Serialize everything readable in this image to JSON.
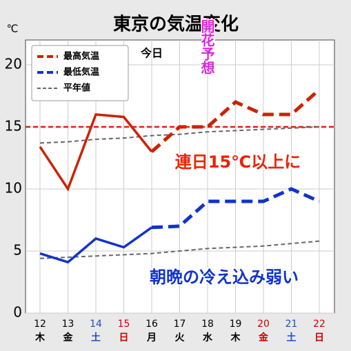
{
  "chart_data": {
    "type": "line",
    "title": "東京の気温変化",
    "y_unit": "℃",
    "categories": [
      "12",
      "13",
      "14",
      "15",
      "16",
      "17",
      "18",
      "19",
      "20",
      "21",
      "22"
    ],
    "weekdays": [
      "木",
      "金",
      "土",
      "日",
      "月",
      "火",
      "水",
      "木",
      "金",
      "土",
      "日"
    ],
    "weekday_colors": [
      "#000",
      "#000",
      "#1a4fc4",
      "#cc0000",
      "#000",
      "#000",
      "#000",
      "#000",
      "#cc0000",
      "#1a4fc4",
      "#cc0000"
    ],
    "series": [
      {
        "name": "最高気温",
        "color": "#cc2200",
        "values": [
          13.4,
          10,
          16,
          15.8,
          13,
          15,
          15,
          17,
          16,
          16,
          18
        ]
      },
      {
        "name": "最低気温",
        "color": "#1133cc",
        "values": [
          4.8,
          4.1,
          6,
          5.3,
          6.9,
          7,
          9,
          9,
          9,
          10,
          9
        ]
      }
    ],
    "normal": {
      "name": "平年値",
      "color": "#666666",
      "high": [
        13.7,
        13.8,
        14.0,
        14.1,
        14.3,
        14.4,
        14.6,
        14.7,
        14.8,
        14.9,
        15.0
      ],
      "low": [
        4.4,
        4.5,
        4.6,
        4.7,
        4.8,
        5.0,
        5.2,
        5.3,
        5.4,
        5.6,
        5.8
      ]
    },
    "today": {
      "text": "今日",
      "category": "16"
    },
    "reference_line": {
      "value": 15,
      "color": "#dd2200"
    },
    "annotations": [
      {
        "text": "開花予想",
        "color": "#dd22dd"
      },
      {
        "text": "連日15℃以上に",
        "color": "#ee2200"
      },
      {
        "text": "朝晩の冷え込み弱い",
        "color": "#1133cc"
      }
    ],
    "ylim": [
      0,
      22
    ],
    "yticks": [
      0,
      5,
      10,
      15,
      20
    ],
    "grid": true
  }
}
